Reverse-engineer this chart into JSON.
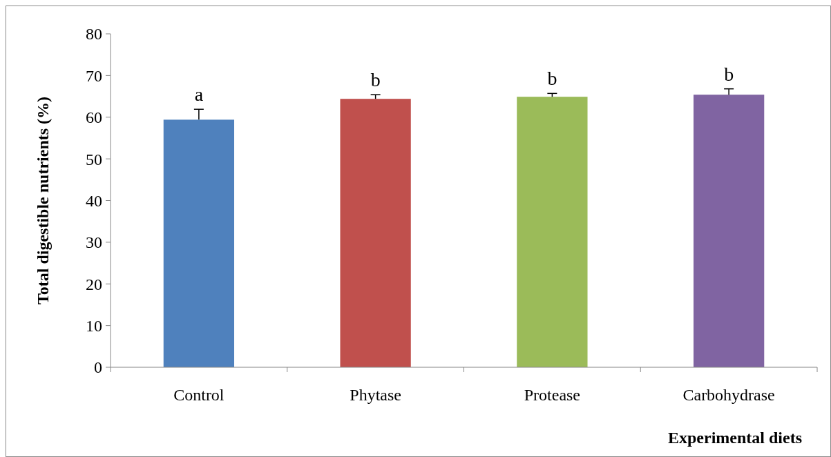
{
  "chart_data": {
    "type": "bar",
    "xlabel": "Experimental diets",
    "ylabel": "Total digestible nutrients (%)",
    "categories": [
      "Control",
      "Phytase",
      "Protease",
      "Carbohydrase"
    ],
    "values": [
      59.4,
      64.4,
      64.9,
      65.4
    ],
    "colors": [
      "#4f81bd",
      "#c0504d",
      "#9bbb59",
      "#8064a2"
    ],
    "errors": [
      [
        59.4,
        61.9
      ],
      [
        64.4,
        65.4
      ],
      [
        64.9,
        65.7
      ],
      [
        65.4,
        66.8
      ]
    ],
    "ylim": [
      0,
      80
    ],
    "yticks": [
      0,
      10,
      20,
      30,
      40,
      50,
      60,
      70,
      80
    ],
    "annotations": [
      {
        "text": "a",
        "x": "Control",
        "y": 61.9
      },
      {
        "text": "b",
        "x": "Phytase",
        "y": 65.4
      },
      {
        "text": "b",
        "x": "Protease",
        "y": 65.7
      },
      {
        "text": "b",
        "x": "Carbohydrase",
        "y": 66.8
      }
    ],
    "grid": false
  }
}
